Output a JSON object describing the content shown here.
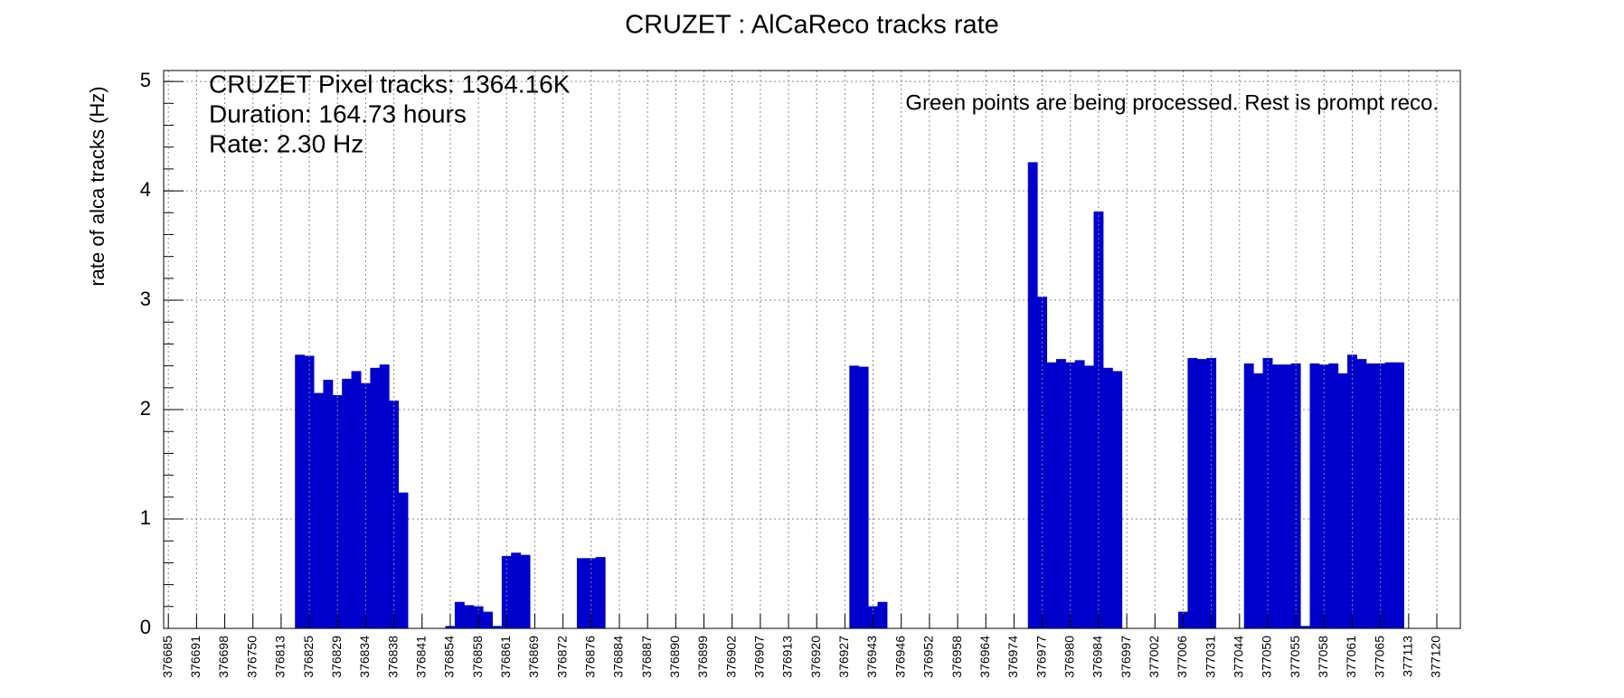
{
  "chart_data": {
    "type": "bar",
    "title": "CRUZET : AlCaReco tracks rate",
    "y_label": "rate of alca tracks (Hz)",
    "annotations": [
      "CRUZET Pixel tracks: 1364.16K",
      "Duration: 164.73 hours",
      "Rate: 2.30 Hz"
    ],
    "note": "Green points are being processed. Rest is prompt reco.",
    "color": "#0000cc",
    "grid": true,
    "ylim": [
      0,
      5.1
    ],
    "yticks": [
      0,
      1,
      2,
      3,
      4,
      5
    ],
    "categories": [
      "376685",
      null,
      null,
      "376691",
      null,
      null,
      "376698",
      null,
      null,
      "376750",
      null,
      null,
      "376813",
      null,
      null,
      "376825",
      null,
      null,
      "376829",
      null,
      null,
      "376834",
      null,
      null,
      "376838",
      null,
      null,
      "376841",
      null,
      null,
      "376854",
      null,
      null,
      "376858",
      null,
      null,
      "376861",
      null,
      null,
      "376869",
      null,
      null,
      "376872",
      null,
      null,
      "376876",
      null,
      null,
      "376884",
      null,
      null,
      "376887",
      null,
      null,
      "376890",
      null,
      null,
      "376899",
      null,
      null,
      "376902",
      null,
      null,
      "376907",
      null,
      null,
      "376913",
      null,
      null,
      "376920",
      null,
      null,
      "376927",
      null,
      null,
      "376943",
      null,
      null,
      "376946",
      null,
      null,
      "376952",
      null,
      null,
      "376958",
      null,
      null,
      "376964",
      null,
      null,
      "376974",
      null,
      null,
      "376977",
      null,
      null,
      "376980",
      null,
      null,
      "376984",
      null,
      null,
      "376997",
      null,
      null,
      "377002",
      null,
      null,
      "377006",
      null,
      null,
      "377031",
      null,
      null,
      "377044",
      null,
      null,
      "377050",
      null,
      null,
      "377055",
      null,
      null,
      "377058",
      null,
      null,
      "377061",
      null,
      null,
      "377065",
      null,
      null,
      "377113",
      null,
      null,
      "377120",
      null,
      null
    ],
    "values": [
      0,
      0,
      0,
      0,
      0,
      0,
      0,
      0,
      0,
      0,
      0,
      0,
      0,
      0,
      2.5,
      2.49,
      2.15,
      2.27,
      2.13,
      2.28,
      2.35,
      2.24,
      2.38,
      2.41,
      2.08,
      1.24,
      0,
      0,
      0,
      0,
      0.02,
      0.24,
      0.21,
      0.2,
      0.15,
      0.02,
      0.66,
      0.69,
      0.67,
      0,
      0,
      0,
      0,
      0,
      0.64,
      0.64,
      0.65,
      0,
      0,
      0,
      0,
      0,
      0,
      0,
      0,
      0,
      0,
      0,
      0,
      0,
      0,
      0,
      0,
      0,
      0,
      0,
      0,
      0,
      0,
      0,
      0,
      0,
      0,
      2.4,
      2.39,
      0.2,
      0.24,
      0,
      0,
      0,
      0,
      0,
      0,
      0,
      0,
      0,
      0,
      0,
      0,
      0,
      0,
      0,
      4.26,
      3.03,
      2.43,
      2.46,
      2.43,
      2.45,
      2.4,
      3.81,
      2.38,
      2.35,
      0,
      0,
      0,
      0,
      0,
      0,
      0.15,
      2.47,
      2.46,
      2.47,
      0,
      0,
      0,
      2.42,
      2.33,
      2.47,
      2.41,
      2.41,
      2.42,
      0.02,
      2.42,
      2.41,
      2.42,
      2.33,
      2.5,
      2.46,
      2.42,
      2.42,
      2.43,
      2.43,
      0,
      0,
      0,
      0,
      0,
      0
    ]
  }
}
